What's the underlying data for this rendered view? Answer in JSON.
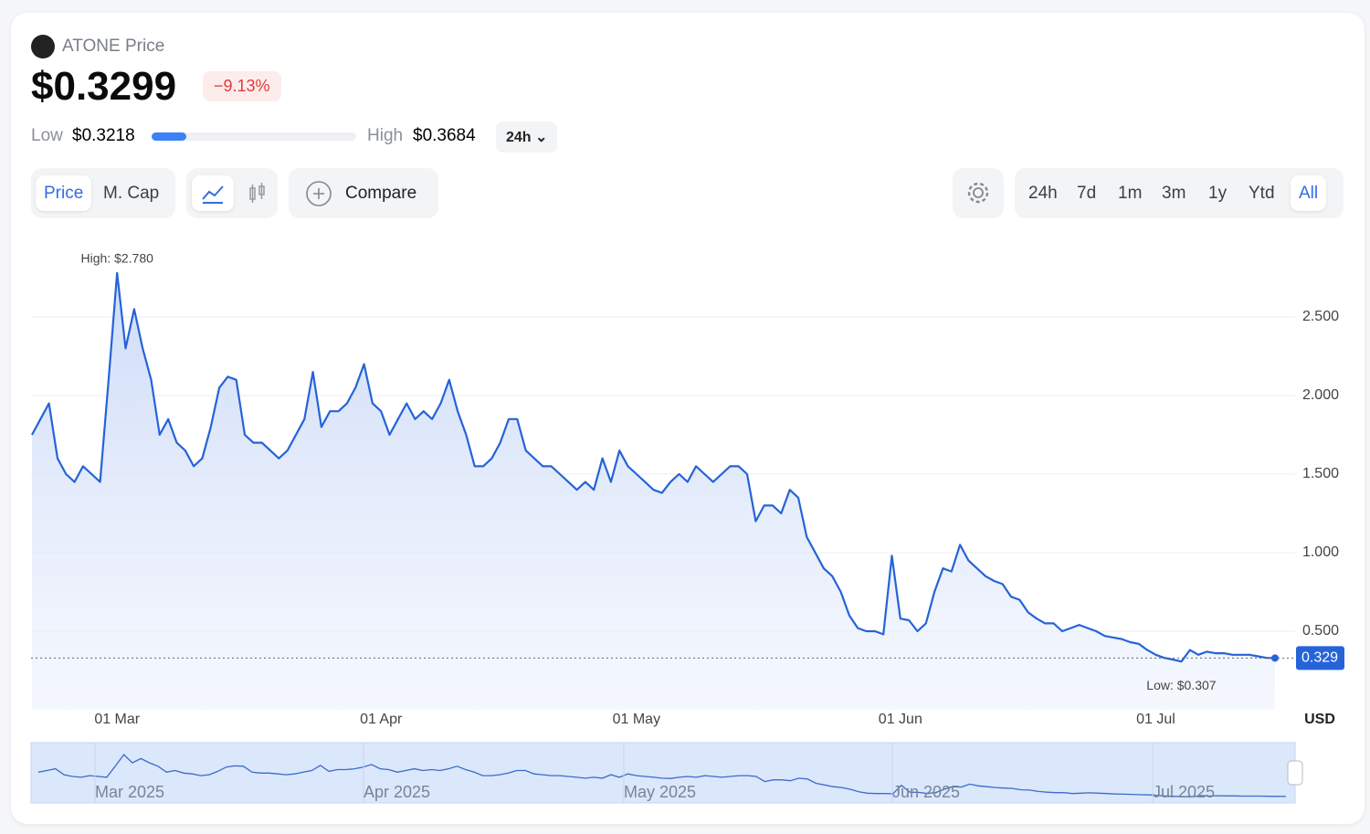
{
  "header": {
    "title": "ATONE Price",
    "price": "$0.3299",
    "change": "−9.13%",
    "low_label": "Low",
    "low_value": "$0.3218",
    "high_label": "High",
    "high_value": "$0.3684",
    "range": "24h"
  },
  "toolbar": {
    "metrics": [
      "Price",
      "M. Cap"
    ],
    "compare": "Compare",
    "periods": [
      "24h",
      "7d",
      "1m",
      "3m",
      "1y",
      "Ytd",
      "All"
    ],
    "active_period": "All"
  },
  "chart_data": {
    "type": "line",
    "y_label": "USD",
    "color": "#2563d8",
    "grid": true,
    "x": [
      "19 Feb",
      "20 Feb",
      "21 Feb",
      "22 Feb",
      "23 Feb",
      "24 Feb",
      "25 Feb",
      "26 Feb",
      "27 Feb",
      "28 Feb",
      "01 Mar",
      "02 Mar",
      "03 Mar",
      "04 Mar",
      "05 Mar",
      "06 Mar",
      "07 Mar",
      "08 Mar",
      "09 Mar",
      "10 Mar",
      "11 Mar",
      "12 Mar",
      "13 Mar",
      "14 Mar",
      "15 Mar",
      "16 Mar",
      "17 Mar",
      "18 Mar",
      "19 Mar",
      "20 Mar",
      "21 Mar",
      "22 Mar",
      "23 Mar",
      "24 Mar",
      "25 Mar",
      "26 Mar",
      "27 Mar",
      "28 Mar",
      "29 Mar",
      "30 Mar",
      "31 Mar",
      "01 Apr",
      "02 Apr",
      "03 Apr",
      "04 Apr",
      "05 Apr",
      "06 Apr",
      "07 Apr",
      "08 Apr",
      "09 Apr",
      "10 Apr",
      "11 Apr",
      "12 Apr",
      "13 Apr",
      "14 Apr",
      "15 Apr",
      "16 Apr",
      "17 Apr",
      "18 Apr",
      "19 Apr",
      "20 Apr",
      "21 Apr",
      "22 Apr",
      "23 Apr",
      "24 Apr",
      "25 Apr",
      "26 Apr",
      "27 Apr",
      "28 Apr",
      "29 Apr",
      "30 Apr",
      "01 May",
      "02 May",
      "03 May",
      "04 May",
      "05 May",
      "06 May",
      "07 May",
      "08 May",
      "09 May",
      "10 May",
      "11 May",
      "12 May",
      "13 May",
      "14 May",
      "15 May",
      "16 May",
      "17 May",
      "18 May",
      "19 May",
      "20 May",
      "21 May",
      "22 May",
      "23 May",
      "24 May",
      "25 May",
      "26 May",
      "27 May",
      "28 May",
      "29 May",
      "30 May",
      "31 May",
      "01 Jun",
      "02 Jun",
      "03 Jun",
      "04 Jun",
      "05 Jun",
      "06 Jun",
      "07 Jun",
      "08 Jun",
      "09 Jun",
      "10 Jun",
      "11 Jun",
      "12 Jun",
      "13 Jun",
      "14 Jun",
      "15 Jun",
      "16 Jun",
      "17 Jun",
      "18 Jun",
      "19 Jun",
      "20 Jun",
      "21 Jun",
      "22 Jun",
      "23 Jun",
      "24 Jun",
      "25 Jun",
      "26 Jun",
      "27 Jun",
      "28 Jun",
      "29 Jun",
      "30 Jun",
      "01 Jul",
      "02 Jul",
      "03 Jul",
      "04 Jul",
      "05 Jul",
      "06 Jul",
      "07 Jul",
      "08 Jul",
      "09 Jul",
      "10 Jul",
      "11 Jul",
      "12 Jul",
      "13 Jul",
      "14 Jul",
      "15 Jul"
    ],
    "values": [
      1.75,
      1.85,
      1.95,
      1.6,
      1.5,
      1.45,
      1.55,
      1.5,
      1.45,
      2.1,
      2.78,
      2.3,
      2.55,
      2.3,
      2.1,
      1.75,
      1.85,
      1.7,
      1.65,
      1.55,
      1.6,
      1.8,
      2.05,
      2.12,
      2.1,
      1.75,
      1.7,
      1.7,
      1.65,
      1.6,
      1.65,
      1.75,
      1.85,
      2.15,
      1.8,
      1.9,
      1.9,
      1.95,
      2.05,
      2.2,
      1.95,
      1.9,
      1.75,
      1.85,
      1.95,
      1.85,
      1.9,
      1.85,
      1.95,
      2.1,
      1.9,
      1.75,
      1.55,
      1.55,
      1.6,
      1.7,
      1.85,
      1.85,
      1.65,
      1.6,
      1.55,
      1.55,
      1.5,
      1.45,
      1.4,
      1.45,
      1.4,
      1.6,
      1.45,
      1.65,
      1.55,
      1.5,
      1.45,
      1.4,
      1.38,
      1.45,
      1.5,
      1.45,
      1.55,
      1.5,
      1.45,
      1.5,
      1.55,
      1.55,
      1.5,
      1.2,
      1.3,
      1.3,
      1.25,
      1.4,
      1.35,
      1.1,
      1.0,
      0.9,
      0.85,
      0.75,
      0.6,
      0.52,
      0.5,
      0.5,
      0.48,
      0.98,
      0.58,
      0.57,
      0.5,
      0.55,
      0.75,
      0.9,
      0.88,
      1.05,
      0.95,
      0.9,
      0.85,
      0.82,
      0.8,
      0.72,
      0.7,
      0.62,
      0.58,
      0.55,
      0.55,
      0.5,
      0.52,
      0.54,
      0.52,
      0.5,
      0.47,
      0.46,
      0.45,
      0.43,
      0.42,
      0.38,
      0.35,
      0.33,
      0.32,
      0.307,
      0.38,
      0.35,
      0.37,
      0.36,
      0.36,
      0.35,
      0.35,
      0.35,
      0.34,
      0.33,
      0.329
    ],
    "ylim": [
      0,
      3
    ],
    "yticks": [
      {
        "value": 0.5,
        "label": "0.500"
      },
      {
        "value": 1,
        "label": "1.000"
      },
      {
        "value": 1.5,
        "label": "1.500"
      },
      {
        "value": 2,
        "label": "2.000"
      },
      {
        "value": 2.5,
        "label": "2.500"
      }
    ],
    "xticks": [
      "01 Mar",
      "01 Apr",
      "01 May",
      "01 Jun",
      "01 Jul"
    ],
    "annotations": {
      "high": "High: $2.780",
      "low": "Low: $0.307",
      "last": "0.329"
    },
    "navigator_labels": [
      "Mar 2025",
      "Apr 2025",
      "May 2025",
      "Jun 2025",
      "Jul 2025"
    ]
  }
}
